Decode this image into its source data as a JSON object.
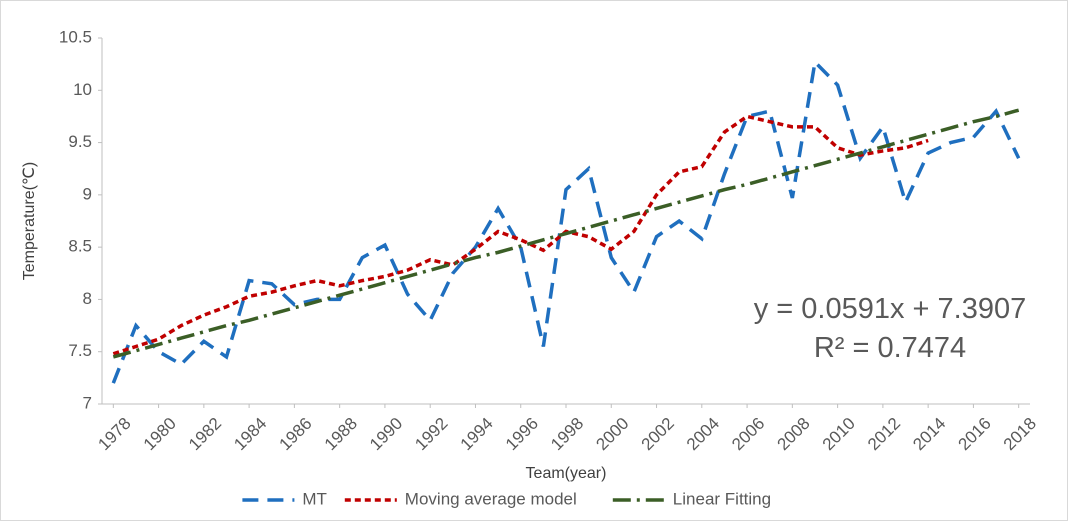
{
  "chart_data": {
    "type": "line",
    "x_label": "Team(year)",
    "y_label": "Temperature(℃)",
    "annotations": [
      "y = 0.0591x + 7.3907",
      "R² = 0.7474"
    ],
    "x": [
      1978,
      1979,
      1980,
      1981,
      1982,
      1983,
      1984,
      1985,
      1986,
      1987,
      1988,
      1989,
      1990,
      1991,
      1992,
      1993,
      1994,
      1995,
      1996,
      1997,
      1998,
      1999,
      2000,
      2001,
      2002,
      2003,
      2004,
      2005,
      2006,
      2007,
      2008,
      2009,
      2010,
      2011,
      2012,
      2013,
      2014,
      2015,
      2016,
      2017,
      2018
    ],
    "xlim": [
      1977.5,
      2018.5
    ],
    "xticks": [
      1978,
      1980,
      1982,
      1984,
      1986,
      1988,
      1990,
      1992,
      1994,
      1996,
      1998,
      2000,
      2002,
      2004,
      2006,
      2008,
      2010,
      2012,
      2014,
      2016,
      2018
    ],
    "ylim": [
      7,
      10.5
    ],
    "yticks": [
      7,
      7.5,
      8,
      8.5,
      9,
      9.5,
      10,
      10.5
    ],
    "legend": "bottom",
    "series": [
      {
        "name": "MT",
        "color": "#1f6fbf",
        "style": "dash",
        "values": [
          7.2,
          7.75,
          7.5,
          7.38,
          7.6,
          7.45,
          8.18,
          8.15,
          7.95,
          8.0,
          8.0,
          8.4,
          8.52,
          8.05,
          7.8,
          8.25,
          8.5,
          8.87,
          8.5,
          7.55,
          9.05,
          9.25,
          8.4,
          8.07,
          8.6,
          8.75,
          8.58,
          9.2,
          9.75,
          9.8,
          8.97,
          10.27,
          10.05,
          9.35,
          9.65,
          8.93,
          9.4,
          9.5,
          9.55,
          9.8,
          9.35
        ]
      },
      {
        "name": "Moving average model",
        "color": "#c00000",
        "style": "dot",
        "values": [
          7.48,
          7.55,
          7.62,
          7.75,
          7.85,
          7.93,
          8.03,
          8.07,
          8.13,
          8.18,
          8.13,
          8.18,
          8.22,
          8.28,
          8.38,
          8.33,
          8.48,
          8.65,
          8.57,
          8.47,
          8.65,
          8.6,
          8.48,
          8.65,
          9.0,
          9.22,
          9.27,
          9.6,
          9.75,
          9.7,
          9.65,
          9.65,
          9.45,
          9.38,
          9.42,
          9.45,
          9.52,
          null,
          null,
          null,
          null
        ]
      },
      {
        "name": "Linear Fitting",
        "color": "#3b5e26",
        "style": "dashdot",
        "values": [
          7.45,
          7.51,
          7.57,
          7.63,
          7.69,
          7.75,
          7.8,
          7.86,
          7.92,
          7.98,
          8.04,
          8.1,
          8.16,
          8.22,
          8.28,
          8.34,
          8.4,
          8.45,
          8.51,
          8.57,
          8.63,
          8.69,
          8.75,
          8.81,
          8.87,
          8.93,
          8.99,
          9.05,
          9.1,
          9.16,
          9.22,
          9.28,
          9.34,
          9.4,
          9.46,
          9.52,
          9.58,
          9.64,
          9.7,
          9.75,
          9.81
        ]
      }
    ]
  }
}
